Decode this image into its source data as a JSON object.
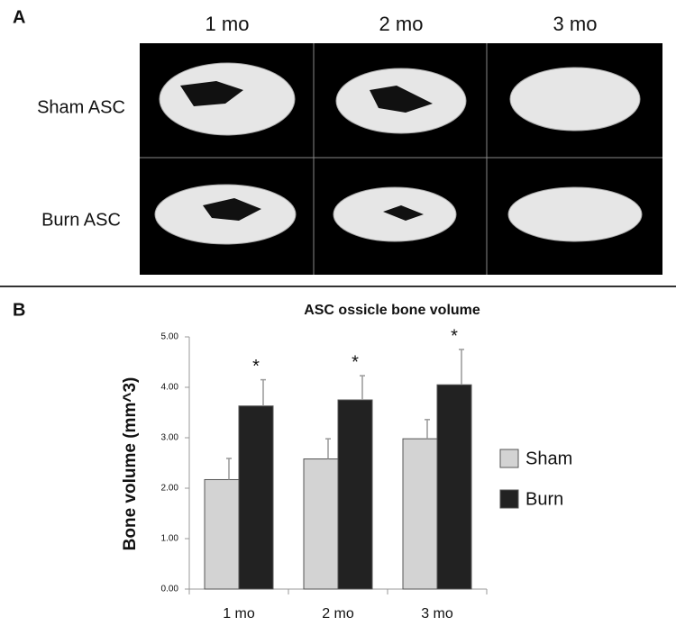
{
  "panel_a": {
    "label": "A",
    "columns": [
      "1 mo",
      "2 mo",
      "3 mo"
    ],
    "rows": [
      "Sham ASC",
      "Burn ASC"
    ]
  },
  "panel_b_label": "B",
  "chart_data": {
    "type": "bar",
    "title": "ASC ossicle bone volume",
    "y_label": "Bone volume (mm^3)",
    "categories": [
      "1 mo",
      "2 mo",
      "3 mo"
    ],
    "series": [
      {
        "name": "Sham",
        "color": "#d3d3d3",
        "values": [
          2.17,
          2.58,
          2.98
        ],
        "errors": [
          0.42,
          0.4,
          0.38
        ]
      },
      {
        "name": "Burn",
        "color": "#222222",
        "values": [
          3.63,
          3.75,
          4.05
        ],
        "errors": [
          0.52,
          0.48,
          0.7
        ]
      }
    ],
    "annotations": [
      "*",
      "*",
      "*"
    ],
    "ylim": [
      0,
      5
    ],
    "yticks": [
      {
        "value": 0,
        "label": "0.00"
      },
      {
        "value": 1,
        "label": "1.00"
      },
      {
        "value": 2,
        "label": "2.00"
      },
      {
        "value": 3,
        "label": "3.00"
      },
      {
        "value": 4,
        "label": "4.00"
      },
      {
        "value": 5,
        "label": "5.00"
      }
    ],
    "legend": "right"
  }
}
